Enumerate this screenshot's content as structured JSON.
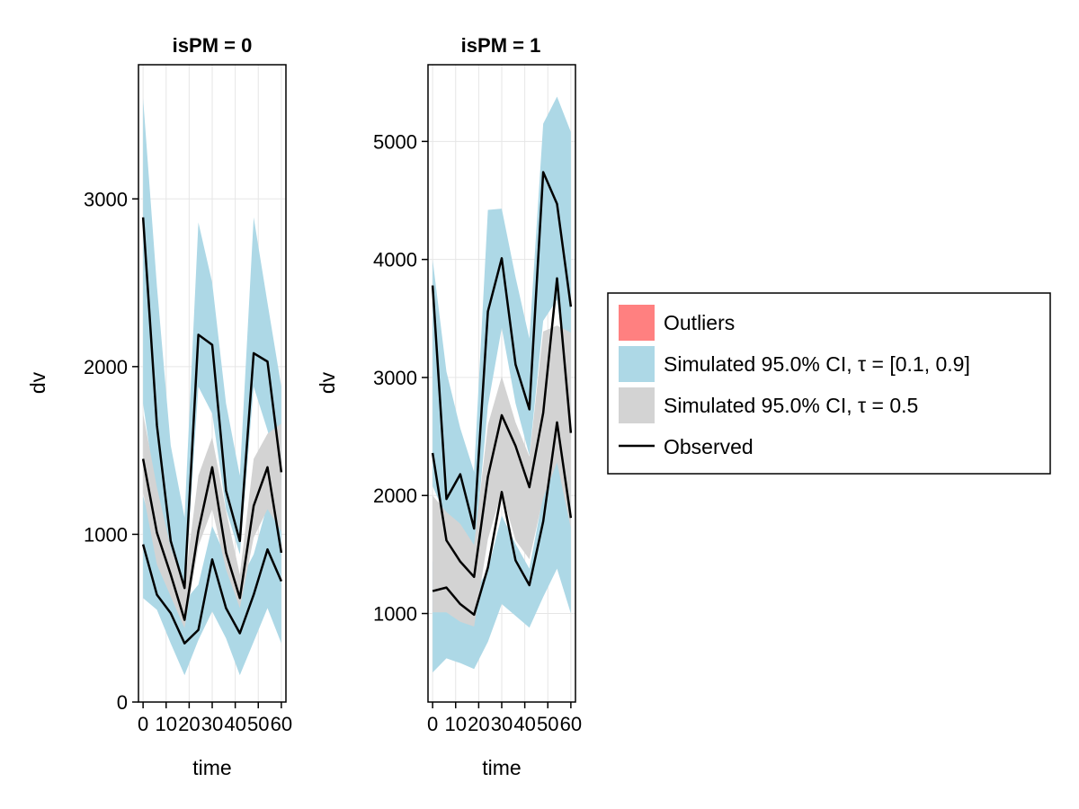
{
  "chart_data": [
    {
      "type": "area",
      "title": "isPM = 0",
      "xlabel": "time",
      "ylabel": "dv",
      "xlim": [
        -2,
        62
      ],
      "ylim": [
        0,
        3800
      ],
      "xticks": [
        0,
        10,
        20,
        30,
        40,
        50,
        60
      ],
      "xtick_labels": [
        "0",
        "10",
        "20",
        "30",
        "40",
        "50",
        "60"
      ],
      "yticks": [
        0,
        1000,
        2000,
        3000
      ],
      "ytick_labels": [
        "0",
        "1000",
        "2000",
        "3000"
      ],
      "x": [
        0,
        6,
        12,
        18,
        24,
        30,
        36,
        42,
        48,
        54,
        60
      ],
      "ci_outer_upper": {
        "lower": [
          1780,
          1200,
          890,
          640,
          1880,
          1720,
          1150,
          880,
          1880,
          1620,
          1290
        ],
        "upper": [
          3600,
          2480,
          1530,
          1100,
          2860,
          2500,
          1780,
          1350,
          2890,
          2380,
          1880
        ]
      },
      "ci_median": {
        "lower": [
          1250,
          820,
          630,
          440,
          930,
          1150,
          790,
          560,
          980,
          1150,
          1020
        ],
        "upper": [
          1720,
          1280,
          920,
          700,
          1350,
          1580,
          1140,
          760,
          1450,
          1600,
          1660
        ]
      },
      "ci_outer_lower": {
        "lower": [
          620,
          550,
          350,
          160,
          370,
          540,
          380,
          160,
          360,
          560,
          350
        ],
        "upper": [
          1230,
          930,
          760,
          600,
          700,
          1050,
          860,
          720,
          880,
          1180,
          1080
        ]
      },
      "observed": [
        {
          "values": [
            2890,
            1650,
            960,
            680,
            2190,
            2130,
            1260,
            960,
            2080,
            2030,
            1370
          ]
        },
        {
          "values": [
            1450,
            1010,
            760,
            490,
            1020,
            1400,
            890,
            620,
            1170,
            1400,
            890
          ]
        },
        {
          "values": [
            940,
            640,
            530,
            350,
            430,
            850,
            560,
            410,
            640,
            910,
            720
          ]
        }
      ]
    },
    {
      "type": "area",
      "title": "isPM = 1",
      "xlabel": "time",
      "ylabel": "dv",
      "xlim": [
        -2,
        62
      ],
      "ylim": [
        250,
        5650
      ],
      "xticks": [
        0,
        10,
        20,
        30,
        40,
        50,
        60
      ],
      "xtick_labels": [
        "0",
        "10",
        "20",
        "30",
        "40",
        "50",
        "60"
      ],
      "yticks": [
        1000,
        2000,
        3000,
        4000,
        5000
      ],
      "ytick_labels": [
        "1000",
        "2000",
        "3000",
        "4000",
        "5000"
      ],
      "x": [
        0,
        6,
        12,
        18,
        24,
        30,
        36,
        42,
        48,
        54,
        60
      ],
      "ci_outer_upper": {
        "lower": [
          2080,
          1810,
          1560,
          1490,
          2760,
          3420,
          2780,
          2340,
          3480,
          3660,
          2750
        ]
      },
      "ci_outer_upper_upper": [
        4000,
        3050,
        2570,
        2200,
        4420,
        4430,
        3850,
        3330,
        5150,
        5380,
        5080
      ],
      "ci_median": {
        "lower": [
          1010,
          1010,
          930,
          890,
          1630,
          2030,
          1620,
          1460,
          1980,
          2280,
          1720
        ],
        "upper": [
          2000,
          1860,
          1760,
          1580,
          2600,
          3010,
          2620,
          2330,
          3390,
          3440,
          3380
        ]
      },
      "ci_outer_lower": {
        "lower": [
          500,
          620,
          580,
          530,
          760,
          1080,
          980,
          880,
          1140,
          1380,
          1000
        ],
        "upper": [
          1440,
          1370,
          1270,
          1170,
          1370,
          1830,
          1590,
          1380,
          2000,
          2420,
          2160
        ]
      },
      "observed": [
        {
          "values": [
            3780,
            1970,
            2180,
            1720,
            3560,
            4010,
            3110,
            2730,
            4740,
            4470,
            3600
          ]
        },
        {
          "values": [
            2360,
            1620,
            1440,
            1310,
            2160,
            2680,
            2420,
            2070,
            2700,
            3840,
            2530
          ]
        },
        {
          "values": [
            1190,
            1220,
            1080,
            990,
            1390,
            2030,
            1450,
            1240,
            1780,
            2620,
            1810
          ]
        }
      ]
    }
  ],
  "legend": {
    "placement": "right",
    "entries": [
      {
        "label": "Outliers",
        "color": "#ff8080",
        "kind": "patch"
      },
      {
        "label": "Simulated 95.0% CI, τ = [0.1, 0.9]",
        "color": "#add8e6",
        "kind": "patch"
      },
      {
        "label": "Simulated 95.0% CI, τ = 0.5",
        "color": "#d3d3d3",
        "kind": "patch"
      },
      {
        "label": "Observed",
        "color": "#000000",
        "kind": "line"
      }
    ]
  },
  "colors": {
    "ci_outer": "#add8e6",
    "ci_median": "#d3d3d3",
    "observed": "#000000",
    "outliers": "#ff8080",
    "grid": "#e6e6e6"
  }
}
